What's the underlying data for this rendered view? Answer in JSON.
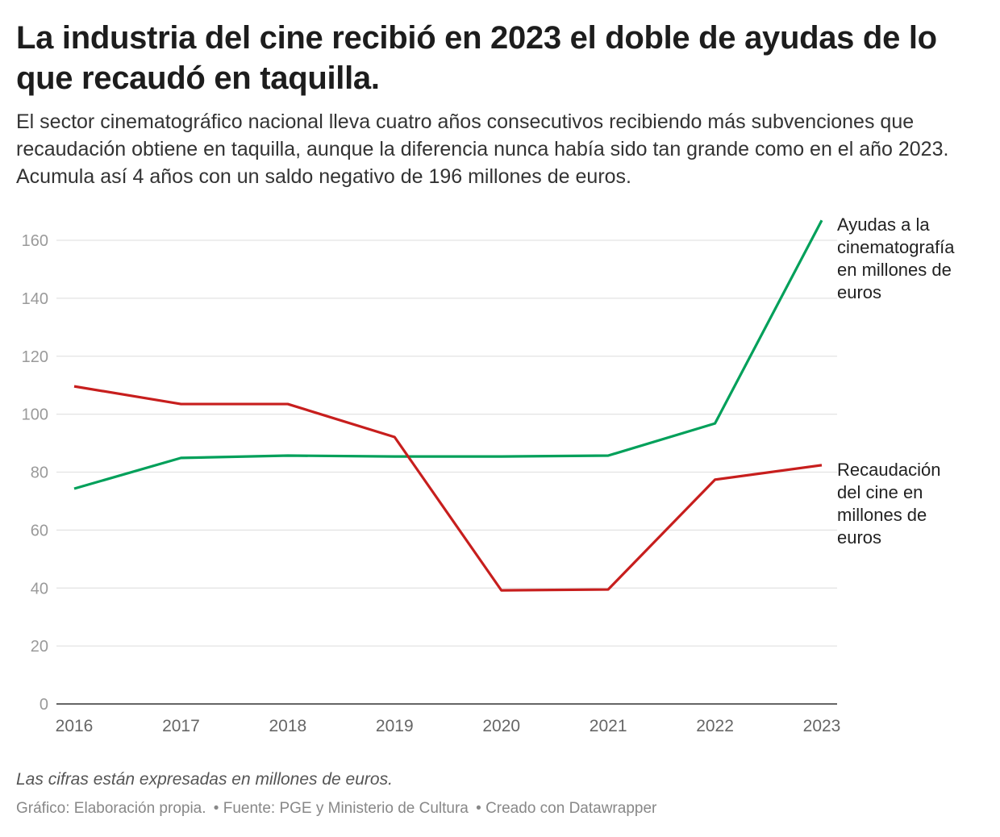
{
  "title": "La industria del cine recibió en 2023 el doble de ayudas de lo que recaudó en taquilla.",
  "subtitle": "El sector cinematográfico nacional lleva cuatro años consecutivos recibiendo más subvenciones que recaudación obtiene en taquilla, aunque la diferencia nunca había sido tan grande como en el año 2023. Acumula así 4 años con un saldo negativo de 196 millones de euros.",
  "note": "Las cifras están expresadas en millones de euros.",
  "footer": {
    "chart_credit": "Gráfico: Elaboración propia.",
    "source": "• Fuente: PGE y Ministerio de Cultura",
    "created": "• Creado con Datawrapper"
  },
  "chart_data": {
    "type": "line",
    "x": [
      "2016",
      "2017",
      "2018",
      "2019",
      "2020",
      "2021",
      "2022",
      "2023"
    ],
    "ylim": [
      0,
      170
    ],
    "yticks": [
      0,
      20,
      40,
      60,
      80,
      100,
      120,
      140,
      160
    ],
    "grid": true,
    "legend": "direct-labels-right",
    "series": [
      {
        "name": "Ayudas a la cinematografía en millones de euros",
        "label_lines": [
          "Ayudas a la",
          "cinematografía",
          "en millones de",
          "euros"
        ],
        "color": "#00a05a",
        "values": [
          74.3,
          84.9,
          85.7,
          85.4,
          85.4,
          85.7,
          96.8,
          166.9
        ]
      },
      {
        "name": "Recaudación del cine en millones de euros",
        "label_lines": [
          "Recaudación",
          "del cine en",
          "millones de",
          "euros"
        ],
        "color": "#c71e1d",
        "values": [
          109.6,
          103.5,
          103.5,
          92.1,
          39.2,
          39.5,
          77.4,
          82.4
        ]
      }
    ]
  }
}
